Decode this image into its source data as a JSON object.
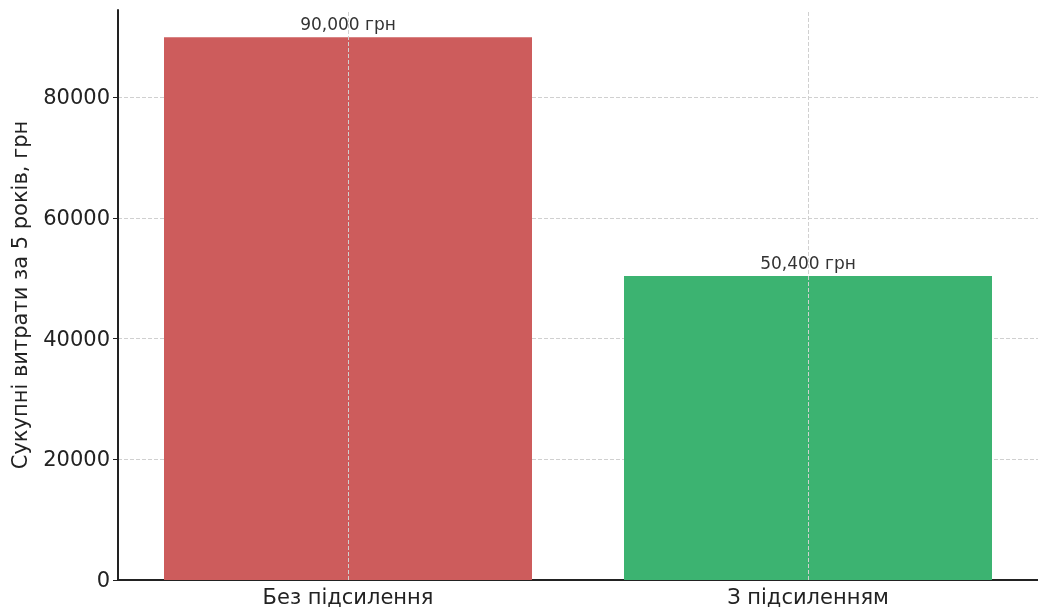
{
  "chart_data": {
    "type": "bar",
    "ylabel": "Сукупні витрати за 5 років, грн",
    "categories": [
      "Без підсилення",
      "З підсиленням"
    ],
    "values": [
      90000,
      50400
    ],
    "colors": [
      "#cd5c5c",
      "#3cb371"
    ],
    "value_labels": [
      "90,000 грн",
      "50,400 грн"
    ],
    "ylim": [
      0,
      94500
    ],
    "yticks": [
      0,
      20000,
      40000,
      60000,
      80000
    ],
    "grid": true
  }
}
